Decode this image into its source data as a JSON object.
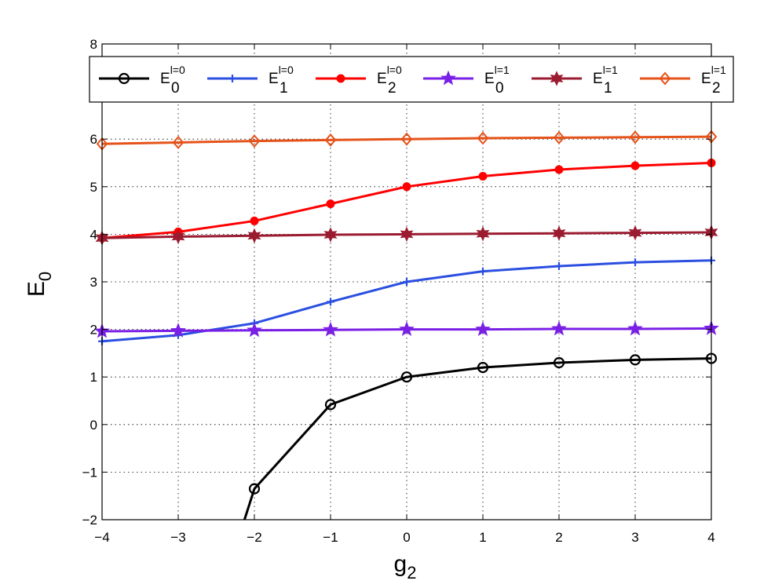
{
  "chart_data": {
    "type": "line",
    "title": "",
    "xlabel": {
      "base": "g",
      "sub": "2"
    },
    "ylabel": {
      "base": "E",
      "sub": "0"
    },
    "xlim": [
      -4,
      4
    ],
    "ylim": [
      -2,
      8
    ],
    "xticks": [
      -4,
      -3,
      -2,
      -1,
      0,
      1,
      2,
      3,
      4
    ],
    "yticks": [
      -2,
      -1,
      0,
      1,
      2,
      3,
      4,
      5,
      6,
      7,
      8
    ],
    "xtick_labels": [
      "−4",
      "−3",
      "−2",
      "−1",
      "0",
      "1",
      "2",
      "3",
      "4"
    ],
    "ytick_labels": [
      "−2",
      "−1",
      "0",
      "1",
      "2",
      "3",
      "4",
      "5",
      "6",
      "",
      "8"
    ],
    "grid": true,
    "legend_position": "top",
    "x": [
      -4,
      -3,
      -2,
      -1,
      0,
      1,
      2,
      3,
      4
    ],
    "series": [
      {
        "name": {
          "base": "E",
          "sub": "0",
          "sup": "l=0"
        },
        "color": "#000000",
        "marker": "circle",
        "values": [
          null,
          null,
          -1.35,
          0.42,
          1.0,
          1.2,
          1.3,
          1.36,
          1.39
        ],
        "extra_start": {
          "x": -2.13,
          "y": -2.0
        }
      },
      {
        "name": {
          "base": "E",
          "sub": "1",
          "sup": "l=0"
        },
        "color": "#2b4fe0",
        "marker": "plus",
        "values": [
          1.75,
          1.88,
          2.13,
          2.58,
          3.0,
          3.22,
          3.33,
          3.41,
          3.45
        ]
      },
      {
        "name": {
          "base": "E",
          "sub": "2",
          "sup": "l=0"
        },
        "color": "#ff0000",
        "marker": "dot",
        "values": [
          3.92,
          4.05,
          4.28,
          4.64,
          5.0,
          5.22,
          5.36,
          5.44,
          5.5
        ]
      },
      {
        "name": {
          "base": "E",
          "sub": "0",
          "sup": "l=1"
        },
        "color": "#7a1fe6",
        "marker": "star",
        "values": [
          1.96,
          1.97,
          1.98,
          1.99,
          2.0,
          2.0,
          2.01,
          2.01,
          2.02
        ]
      },
      {
        "name": {
          "base": "E",
          "sub": "1",
          "sup": "l=1"
        },
        "color": "#9b1b30",
        "marker": "hexstar",
        "values": [
          3.92,
          3.95,
          3.97,
          3.99,
          4.0,
          4.01,
          4.02,
          4.03,
          4.04
        ]
      },
      {
        "name": {
          "base": "E",
          "sub": "2",
          "sup": "l=1"
        },
        "color": "#e5531a",
        "marker": "diamond",
        "values": [
          5.9,
          5.93,
          5.96,
          5.98,
          6.0,
          6.02,
          6.03,
          6.04,
          6.05
        ]
      }
    ]
  }
}
